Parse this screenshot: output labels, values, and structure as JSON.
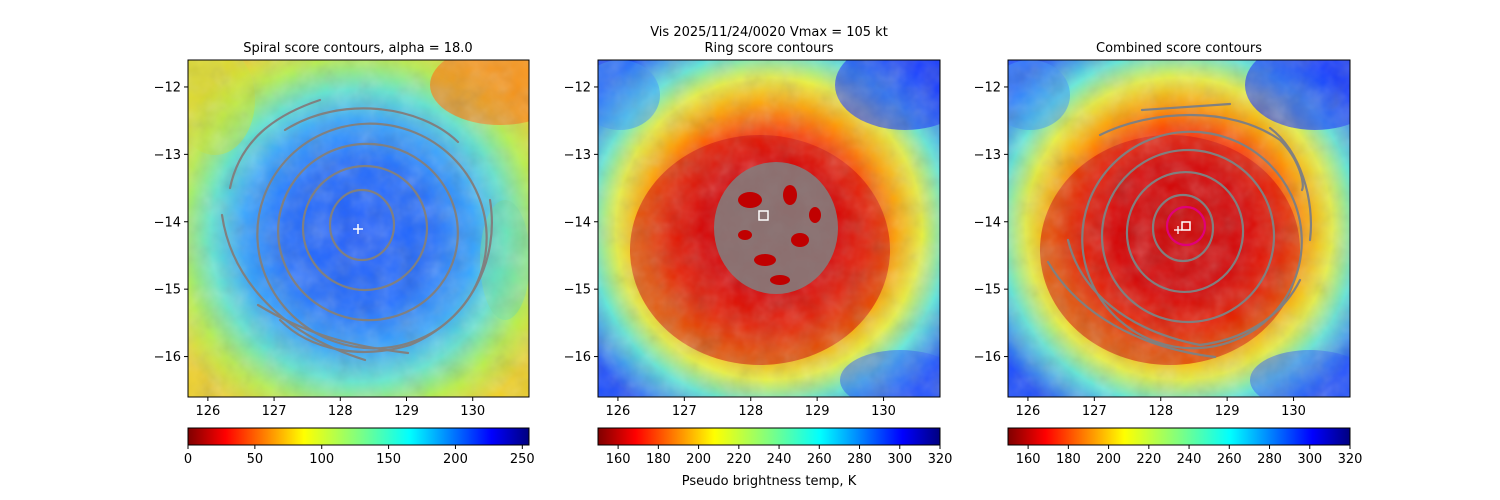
{
  "figure": {
    "suptitle_line1": "Vis  2025/11/24/0020    Vmax = 105 kt",
    "colorbar_label": "Pseudo brightness temp, K"
  },
  "chart_data": [
    {
      "type": "heatmap",
      "title": "Spiral score contours, alpha = 18.0",
      "colormap": "jet_r",
      "x_ticks": [
        126,
        127,
        128,
        129,
        130
      ],
      "y_ticks": [
        -12,
        -13,
        -14,
        -15,
        -16
      ],
      "xlim": [
        125.7,
        130.85
      ],
      "ylim": [
        -16.6,
        -11.6
      ],
      "colorbar": {
        "range": [
          0,
          255
        ],
        "ticks": [
          0,
          50,
          100,
          150,
          200,
          250
        ]
      },
      "center_marker": {
        "symbol": "+",
        "x": 128.25,
        "y": -14.1
      }
    },
    {
      "type": "heatmap",
      "title": "Ring score contours",
      "colormap": "jet_r",
      "x_ticks": [
        126,
        127,
        128,
        129,
        130
      ],
      "y_ticks": [
        -12,
        -13,
        -14,
        -15,
        -16
      ],
      "xlim": [
        125.7,
        130.85
      ],
      "ylim": [
        -16.6,
        -11.6
      ],
      "colorbar": {
        "range": [
          150,
          320
        ],
        "ticks": [
          160,
          180,
          200,
          220,
          240,
          260,
          280,
          300,
          320
        ]
      },
      "center_marker": {
        "symbol": "square",
        "x": 128.2,
        "y": -13.9
      }
    },
    {
      "type": "heatmap",
      "title": "Combined score contours",
      "colormap": "jet_r",
      "x_ticks": [
        126,
        127,
        128,
        129,
        130
      ],
      "y_ticks": [
        -12,
        -13,
        -14,
        -15,
        -16
      ],
      "xlim": [
        125.7,
        130.85
      ],
      "ylim": [
        -16.6,
        -11.6
      ],
      "colorbar": {
        "range": [
          150,
          320
        ],
        "ticks": [
          160,
          180,
          200,
          220,
          240,
          260,
          280,
          300,
          320
        ]
      },
      "center_marker": {
        "symbol": "square",
        "x": 128.35,
        "y": -14.05
      },
      "first_guess_marker": {
        "symbol": "+",
        "x": 128.25,
        "y": -14.1
      },
      "eye_circle": {
        "x": 128.35,
        "y": -14.05,
        "radius_deg": 0.25,
        "color": "#e0007a"
      }
    }
  ]
}
